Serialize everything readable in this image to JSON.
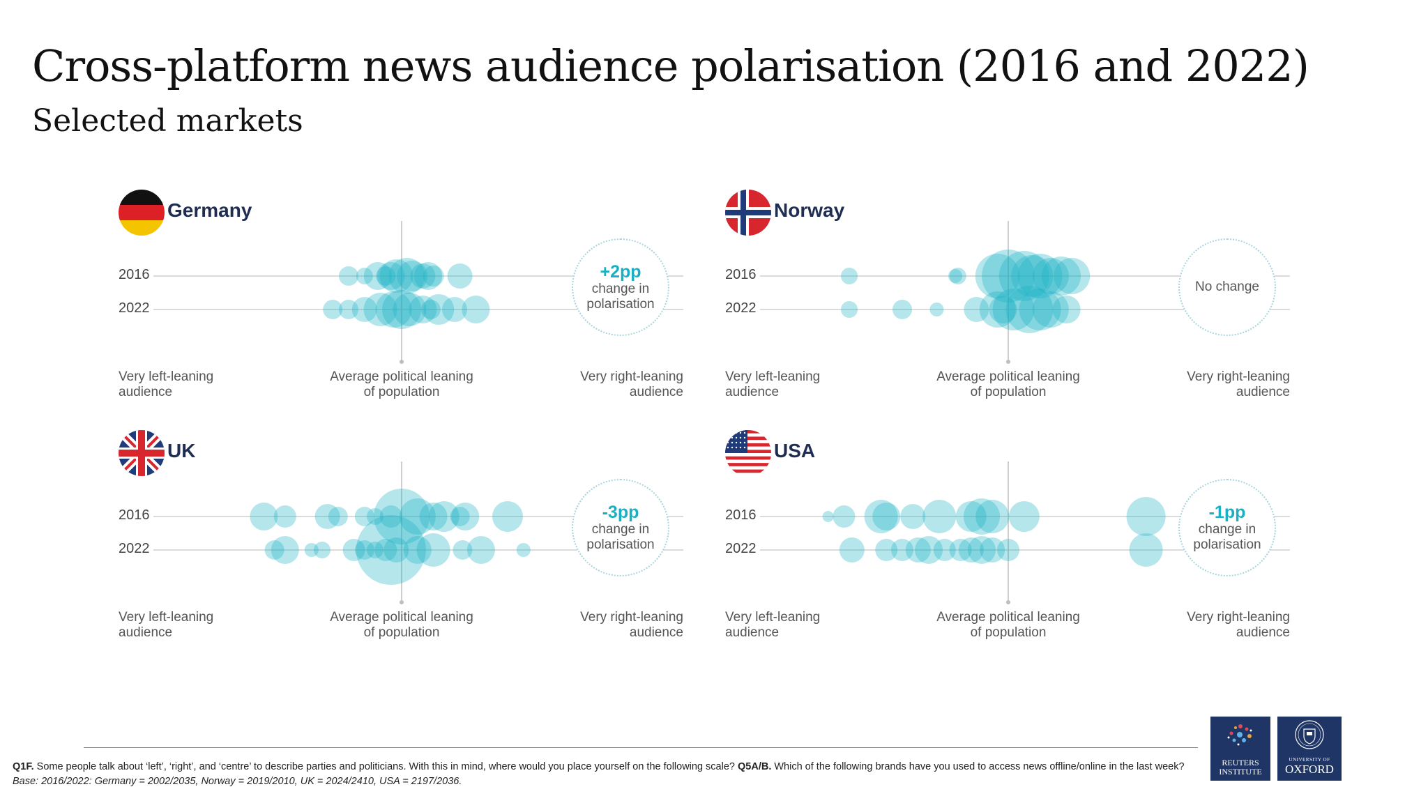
{
  "title": "Cross-platform news audience polarisation (2016 and 2022)",
  "subtitle": "Selected markets",
  "colors": {
    "bubble": "#1ab0c4",
    "country_name": "#1f2d52",
    "change_text": "#1ab0c4"
  },
  "labels": {
    "left": "Very left-leaning audience",
    "left_l1": "Very left-leaning",
    "left_l2": "audience",
    "center_l1": "Average political leaning",
    "center_l2": "of population",
    "right_l1": "Very right-leaning",
    "right_l2": "audience",
    "year1": "2016",
    "year2": "2022"
  },
  "chart_data": [
    {
      "type": "scatter",
      "title": "Germany",
      "flag_icon": "germany-flag-icon",
      "change_big": "+2pp",
      "change_small_1": "change in",
      "change_small_2": "polarisation",
      "xlim": [
        -1,
        1
      ],
      "series": [
        {
          "name": "2016",
          "points": [
            [
              -0.06,
              14
            ],
            [
              -0.02,
              24
            ],
            [
              0.02,
              26
            ],
            [
              -0.09,
              20
            ],
            [
              0.08,
              18
            ],
            [
              -0.14,
              12
            ],
            [
              0.12,
              15
            ],
            [
              0.22,
              18
            ],
            [
              -0.2,
              14
            ],
            [
              0.04,
              22
            ],
            [
              -0.04,
              20
            ],
            [
              0.1,
              20
            ]
          ]
        },
        {
          "name": "2022",
          "points": [
            [
              -0.26,
              14
            ],
            [
              -0.2,
              14
            ],
            [
              -0.14,
              18
            ],
            [
              -0.08,
              24
            ],
            [
              -0.03,
              26
            ],
            [
              0.03,
              24
            ],
            [
              0.08,
              20
            ],
            [
              0.14,
              22
            ],
            [
              0.2,
              18
            ],
            [
              0.28,
              20
            ],
            [
              0.0,
              28
            ],
            [
              0.11,
              14
            ]
          ]
        }
      ]
    },
    {
      "type": "scatter",
      "title": "Norway",
      "flag_icon": "norway-flag-icon",
      "change_big": "",
      "change_small_1": "No change",
      "change_small_2": "",
      "xlim": [
        -1,
        1
      ],
      "series": [
        {
          "name": "2016",
          "points": [
            [
              -0.6,
              12
            ],
            [
              -0.2,
              10
            ],
            [
              -0.19,
              12
            ],
            [
              0.0,
              38
            ],
            [
              0.06,
              36
            ],
            [
              0.12,
              32
            ],
            [
              0.2,
              28
            ],
            [
              -0.04,
              32
            ],
            [
              0.16,
              26
            ],
            [
              0.24,
              26
            ],
            [
              0.09,
              30
            ]
          ]
        },
        {
          "name": "2022",
          "points": [
            [
              -0.6,
              12
            ],
            [
              -0.4,
              14
            ],
            [
              -0.27,
              10
            ],
            [
              -0.12,
              18
            ],
            [
              -0.04,
              26
            ],
            [
              0.02,
              30
            ],
            [
              0.08,
              34
            ],
            [
              0.12,
              30
            ],
            [
              0.16,
              26
            ],
            [
              0.22,
              20
            ],
            [
              -0.02,
              20
            ]
          ]
        }
      ]
    },
    {
      "type": "scatter",
      "title": "UK",
      "flag_icon": "uk-flag-icon",
      "change_big": "-3pp",
      "change_small_1": "change in",
      "change_small_2": "polarisation",
      "xlim": [
        -1,
        1
      ],
      "series": [
        {
          "name": "2016",
          "points": [
            [
              -0.52,
              20
            ],
            [
              -0.44,
              16
            ],
            [
              -0.28,
              18
            ],
            [
              -0.24,
              14
            ],
            [
              -0.14,
              14
            ],
            [
              -0.1,
              12
            ],
            [
              -0.04,
              16
            ],
            [
              0.0,
              40
            ],
            [
              0.06,
              26
            ],
            [
              0.12,
              20
            ],
            [
              0.16,
              22
            ],
            [
              0.24,
              20
            ],
            [
              0.22,
              14
            ],
            [
              0.4,
              22
            ]
          ]
        },
        {
          "name": "2022",
          "points": [
            [
              -0.48,
              14
            ],
            [
              -0.44,
              20
            ],
            [
              -0.34,
              10
            ],
            [
              -0.3,
              12
            ],
            [
              -0.18,
              16
            ],
            [
              -0.14,
              14
            ],
            [
              -0.1,
              12
            ],
            [
              -0.06,
              16
            ],
            [
              -0.02,
              18
            ],
            [
              -0.04,
              50
            ],
            [
              0.06,
              20
            ],
            [
              0.12,
              24
            ],
            [
              0.23,
              14
            ],
            [
              0.3,
              20
            ],
            [
              0.46,
              10
            ]
          ]
        }
      ]
    },
    {
      "type": "scatter",
      "title": "USA",
      "flag_icon": "usa-flag-icon",
      "change_big": "-1pp",
      "change_small_1": "change in",
      "change_small_2": "polarisation",
      "xlim": [
        -1,
        1
      ],
      "series": [
        {
          "name": "2016",
          "points": [
            [
              -0.68,
              8
            ],
            [
              -0.62,
              16
            ],
            [
              -0.48,
              24
            ],
            [
              -0.46,
              20
            ],
            [
              -0.36,
              18
            ],
            [
              -0.26,
              24
            ],
            [
              -0.14,
              22
            ],
            [
              -0.1,
              26
            ],
            [
              -0.06,
              24
            ],
            [
              0.06,
              22
            ],
            [
              0.52,
              28
            ]
          ]
        },
        {
          "name": "2022",
          "points": [
            [
              -0.59,
              18
            ],
            [
              -0.46,
              16
            ],
            [
              -0.4,
              16
            ],
            [
              -0.34,
              18
            ],
            [
              -0.3,
              20
            ],
            [
              -0.24,
              16
            ],
            [
              -0.18,
              16
            ],
            [
              -0.14,
              18
            ],
            [
              -0.1,
              20
            ],
            [
              -0.06,
              18
            ],
            [
              0.0,
              16
            ],
            [
              0.52,
              24
            ]
          ]
        }
      ]
    }
  ],
  "footnote": {
    "q1_label": "Q1F.",
    "q1_text": " Some people talk about ‘left’, ‘right’, and ‘centre’ to describe parties and politicians. With this in mind, where would you place yourself on the following scale? ",
    "q2_label": "Q5A/B.",
    "q2_text": " Which of the following brands have you used to access news offline/online in the last week? ",
    "base": "Base: 2016/2022: Germany = 2002/2035, Norway = 2019/2010, UK = 2024/2410, USA = 2197/2036."
  },
  "logos": {
    "reuters_l1": "REUTERS",
    "reuters_l2": "INSTITUTE",
    "oxford_small": "UNIVERSITY OF",
    "oxford_big": "OXFORD"
  }
}
